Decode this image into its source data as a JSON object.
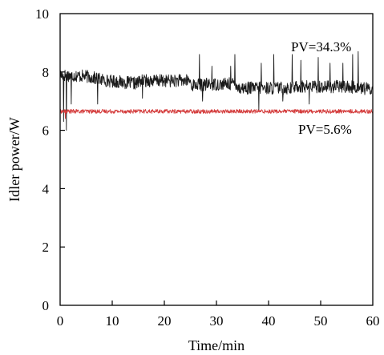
{
  "chart_data": {
    "type": "line",
    "xlabel": "Time/min",
    "ylabel": "Idler power/W",
    "xlim": [
      0,
      60
    ],
    "ylim": [
      0,
      10
    ],
    "xticks": [
      0,
      10,
      20,
      30,
      40,
      50,
      60
    ],
    "yticks": [
      0,
      2,
      4,
      6,
      8,
      10
    ],
    "grid": false,
    "legend": "none",
    "series": [
      {
        "color": "#1a1a1a",
        "baseline_segments": [
          {
            "x": [
              0.0,
              5.0
            ],
            "y": [
              7.9,
              7.85
            ]
          },
          {
            "x": [
              5.0,
              9.0
            ],
            "y": [
              7.85,
              7.7
            ]
          },
          {
            "x": [
              9.0,
              15.0
            ],
            "y": [
              7.7,
              7.6
            ]
          },
          {
            "x": [
              15.0,
              25.0
            ],
            "y": [
              7.7,
              7.7
            ]
          },
          {
            "x": [
              25.0,
              34.0
            ],
            "y": [
              7.55,
              7.6
            ]
          },
          {
            "x": [
              34.0,
              45.0
            ],
            "y": [
              7.45,
              7.45
            ]
          },
          {
            "x": [
              45.0,
              55.0
            ],
            "y": [
              7.5,
              7.5
            ]
          },
          {
            "x": [
              55.0,
              60.0
            ],
            "y": [
              7.5,
              7.4
            ]
          }
        ],
        "noise_amplitude": 0.22,
        "spikes": [
          {
            "x": 0.7,
            "y": 6.3
          },
          {
            "x": 1.2,
            "y": 6.0
          },
          {
            "x": 2.1,
            "y": 6.9
          },
          {
            "x": 7.2,
            "y": 6.9
          },
          {
            "x": 15.8,
            "y": 7.1
          },
          {
            "x": 26.7,
            "y": 8.6
          },
          {
            "x": 27.3,
            "y": 7.0
          },
          {
            "x": 29.1,
            "y": 8.2
          },
          {
            "x": 32.7,
            "y": 8.2
          },
          {
            "x": 33.5,
            "y": 8.6
          },
          {
            "x": 38.1,
            "y": 6.7
          },
          {
            "x": 38.6,
            "y": 8.3
          },
          {
            "x": 41.0,
            "y": 8.6
          },
          {
            "x": 42.7,
            "y": 7.0
          },
          {
            "x": 44.5,
            "y": 8.6
          },
          {
            "x": 46.2,
            "y": 8.4
          },
          {
            "x": 47.8,
            "y": 6.9
          },
          {
            "x": 49.5,
            "y": 8.5
          },
          {
            "x": 51.8,
            "y": 8.3
          },
          {
            "x": 54.3,
            "y": 8.3
          },
          {
            "x": 56.1,
            "y": 8.6
          },
          {
            "x": 57.2,
            "y": 8.7
          }
        ],
        "annotation": "PV=34.3%"
      },
      {
        "color": "#d43c3c",
        "baseline_segments": [
          {
            "x": [
              0.0,
              60.0
            ],
            "y": [
              6.65,
              6.65
            ]
          }
        ],
        "noise_amplitude": 0.07,
        "spikes": [
          {
            "x": 1.0,
            "y": 6.4
          }
        ],
        "annotation": "PV=5.6%"
      }
    ]
  }
}
